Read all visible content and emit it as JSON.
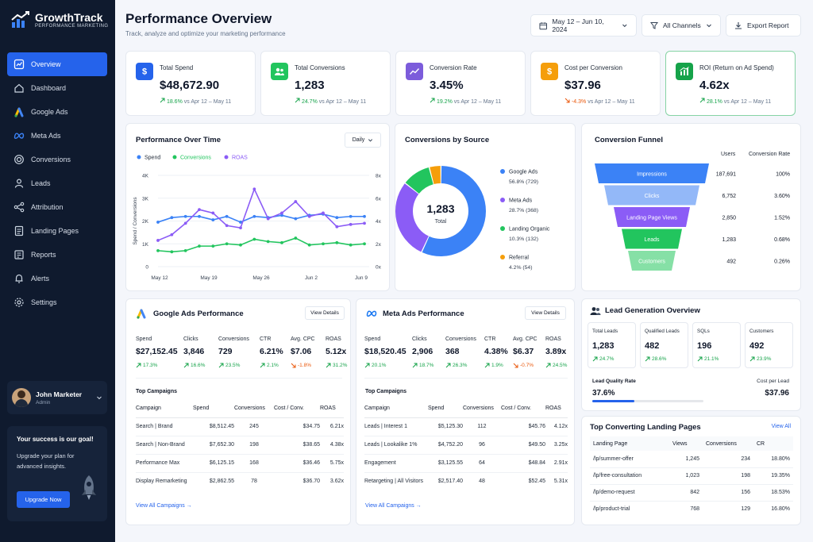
{
  "brand": {
    "name": "GrowthTrack",
    "tagline": "PERFORMANCE MARKETING"
  },
  "nav": [
    {
      "label": "Overview",
      "icon": "overview-icon",
      "active": true
    },
    {
      "label": "Dashboard",
      "icon": "dashboard-icon"
    },
    {
      "label": "Google Ads",
      "icon": "google-ads-icon"
    },
    {
      "label": "Meta Ads",
      "icon": "meta-icon"
    },
    {
      "label": "Conversions",
      "icon": "target-icon"
    },
    {
      "label": "Leads",
      "icon": "users-icon"
    },
    {
      "label": "Attribution",
      "icon": "share-icon"
    },
    {
      "label": "Landing Pages",
      "icon": "page-icon"
    },
    {
      "label": "Reports",
      "icon": "report-icon"
    },
    {
      "label": "Alerts",
      "icon": "bell-icon"
    },
    {
      "label": "Settings",
      "icon": "gear-icon"
    }
  ],
  "user": {
    "name": "John Marketer",
    "role": "Admin"
  },
  "promo": {
    "title": "Your success is our goal!",
    "text": "Upgrade your plan for advanced insights.",
    "button": "Upgrade Now"
  },
  "header": {
    "title": "Performance Overview",
    "subtitle": "Track, analyze and optimize your marketing performance",
    "date_range": "May 12 – Jun 10, 2024",
    "channels": "All Channels",
    "export": "Export Report"
  },
  "kpis": [
    {
      "label": "Total Spend",
      "value": "$48,672.90",
      "delta": "18.6%",
      "dir": "up",
      "compare": "vs Apr 12 – May 11",
      "color": "#2563eb",
      "icon": "dollar-icon"
    },
    {
      "label": "Total Conversions",
      "value": "1,283",
      "delta": "24.7%",
      "dir": "up",
      "compare": "vs Apr 12 – May 11",
      "color": "#22c55e",
      "icon": "users-icon"
    },
    {
      "label": "Conversion Rate",
      "value": "3.45%",
      "delta": "19.2%",
      "dir": "up",
      "compare": "vs Apr 12 – May 11",
      "color": "#7c5cdb",
      "icon": "trend-icon"
    },
    {
      "label": "Cost per Conversion",
      "value": "$37.96",
      "delta": "-4.3%",
      "dir": "down",
      "compare": "vs Apr 12 – May 11",
      "color": "#f59e0b",
      "icon": "dollar-icon"
    },
    {
      "label": "ROI (Return on Ad Spend)",
      "value": "4.62x",
      "delta": "28.1%",
      "dir": "up",
      "compare": "vs Apr 12 – May 11",
      "color": "#16a34a",
      "icon": "chart-icon"
    }
  ],
  "perf": {
    "title": "Performance Over Time",
    "granularity": "Daily",
    "legend": [
      "Spend",
      "Conversions",
      "ROAS"
    ],
    "colors": [
      "#3b82f6",
      "#22c55e",
      "#8b5cf6"
    ],
    "y_left_label": "Spend / Conversions",
    "left_ticks": [
      "4K",
      "3K",
      "2K",
      "1K",
      "0"
    ],
    "right_ticks": [
      "8x",
      "6x",
      "4x",
      "2x",
      "0x"
    ],
    "x_ticks": [
      "May 12",
      "May 19",
      "May 26",
      "Jun 2",
      "Jun 9"
    ]
  },
  "chart_data": {
    "type": "line",
    "title": "Performance Over Time",
    "ylabel": "Spend / Conversions",
    "ylim": [
      0,
      4000
    ],
    "y2lim": [
      0,
      8
    ],
    "x": [
      "May 12",
      "May 14",
      "May 16",
      "May 18",
      "May 20",
      "May 22",
      "May 24",
      "May 26",
      "May 28",
      "May 30",
      "Jun 1",
      "Jun 3",
      "Jun 5",
      "Jun 7",
      "Jun 9",
      "Jun 10"
    ],
    "series": [
      {
        "name": "Spend",
        "axis": "left",
        "values": [
          1950,
          2150,
          2200,
          2200,
          2050,
          2200,
          1950,
          2200,
          2150,
          2250,
          2100,
          2250,
          2300,
          2150,
          2200,
          2200
        ]
      },
      {
        "name": "Conversions",
        "axis": "left",
        "values": [
          700,
          650,
          700,
          900,
          900,
          1000,
          950,
          1200,
          1100,
          1050,
          1250,
          950,
          1000,
          1050,
          950,
          1000
        ]
      },
      {
        "name": "ROAS",
        "axis": "right",
        "values": [
          2.3,
          2.8,
          3.8,
          5.0,
          4.7,
          3.6,
          3.4,
          6.8,
          4.2,
          4.7,
          5.7,
          4.4,
          4.7,
          3.5,
          3.7,
          3.8
        ]
      }
    ]
  },
  "source": {
    "title": "Conversions by Source",
    "total": "1,283",
    "total_label": "Total",
    "items": [
      {
        "name": "Google Ads",
        "detail": "56.8% (729)",
        "pct": 56.8,
        "color": "#3b82f6"
      },
      {
        "name": "Meta Ads",
        "detail": "28.7% (368)",
        "pct": 28.7,
        "color": "#8b5cf6"
      },
      {
        "name": "Landing Organic",
        "detail": "10.3% (132)",
        "pct": 10.3,
        "color": "#22c55e"
      },
      {
        "name": "Referral",
        "detail": "4.2% (54)",
        "pct": 4.2,
        "color": "#f59e0b"
      }
    ]
  },
  "funnel": {
    "title": "Conversion Funnel",
    "col_users": "Users",
    "col_rate": "Conversion Rate",
    "stages": [
      {
        "name": "Impressions",
        "users": "187,691",
        "rate": "100%",
        "color": "#3b82f6"
      },
      {
        "name": "Clicks",
        "users": "6,752",
        "rate": "3.60%",
        "color": "#93b8f8"
      },
      {
        "name": "Landing Page Views",
        "users": "2,850",
        "rate": "1.52%",
        "color": "#8b5cf6"
      },
      {
        "name": "Leads",
        "users": "1,283",
        "rate": "0.68%",
        "color": "#22c55e"
      },
      {
        "name": "Customers",
        "users": "492",
        "rate": "0.26%",
        "color": "#86e0a6"
      }
    ]
  },
  "google": {
    "title": "Google Ads Performance",
    "view": "View Details",
    "metrics": [
      {
        "label": "Spend",
        "value": "$27,152.45",
        "delta": "17.3%",
        "dir": "up"
      },
      {
        "label": "Clicks",
        "value": "3,846",
        "delta": "16.6%",
        "dir": "up"
      },
      {
        "label": "Conversions",
        "value": "729",
        "delta": "23.5%",
        "dir": "up"
      },
      {
        "label": "CTR",
        "value": "6.21%",
        "delta": "2.1%",
        "dir": "up"
      },
      {
        "label": "Avg. CPC",
        "value": "$7.06",
        "delta": "-1.8%",
        "dir": "down"
      },
      {
        "label": "ROAS",
        "value": "5.12x",
        "delta": "31.2%",
        "dir": "up"
      }
    ],
    "top_title": "Top Campaigns",
    "cols": [
      "Campaign",
      "Spend",
      "Conversions",
      "Cost / Conv.",
      "ROAS"
    ],
    "rows": [
      [
        "Search | Brand",
        "$8,512.45",
        "245",
        "$34.75",
        "6.21x"
      ],
      [
        "Search | Non-Brand",
        "$7,652.30",
        "198",
        "$38.65",
        "4.38x"
      ],
      [
        "Performance Max",
        "$6,125.15",
        "168",
        "$36.46",
        "5.75x"
      ],
      [
        "Display Remarketing",
        "$2,862.55",
        "78",
        "$36.70",
        "3.62x"
      ]
    ],
    "link": "View All Campaigns →"
  },
  "meta": {
    "title": "Meta Ads Performance",
    "view": "View Details",
    "metrics": [
      {
        "label": "Spend",
        "value": "$18,520.45",
        "delta": "20.1%",
        "dir": "up"
      },
      {
        "label": "Clicks",
        "value": "2,906",
        "delta": "18.7%",
        "dir": "up"
      },
      {
        "label": "Conversions",
        "value": "368",
        "delta": "26.3%",
        "dir": "up"
      },
      {
        "label": "CTR",
        "value": "4.38%",
        "delta": "1.9%",
        "dir": "up"
      },
      {
        "label": "Avg. CPC",
        "value": "$6.37",
        "delta": "-0.7%",
        "dir": "down"
      },
      {
        "label": "ROAS",
        "value": "3.89x",
        "delta": "24.5%",
        "dir": "up"
      }
    ],
    "top_title": "Top Campaigns",
    "cols": [
      "Campaign",
      "Spend",
      "Conversions",
      "Cost / Conv.",
      "ROAS"
    ],
    "rows": [
      [
        "Leads | Interest 1",
        "$5,125.30",
        "112",
        "$45.76",
        "4.12x"
      ],
      [
        "Leads | Lookalike 1%",
        "$4,752.20",
        "96",
        "$49.50",
        "3.25x"
      ],
      [
        "Engagement",
        "$3,125.55",
        "64",
        "$48.84",
        "2.91x"
      ],
      [
        "Retargeting | All Visitors",
        "$2,517.40",
        "48",
        "$52.45",
        "5.31x"
      ]
    ],
    "link": "View All Campaigns →"
  },
  "leads": {
    "title": "Lead Generation Overview",
    "boxes": [
      {
        "label": "Total Leads",
        "value": "1,283",
        "delta": "24.7%"
      },
      {
        "label": "Qualified Leads",
        "value": "482",
        "delta": "28.6%"
      },
      {
        "label": "SQLs",
        "value": "196",
        "delta": "21.1%"
      },
      {
        "label": "Customers",
        "value": "492",
        "delta": "23.9%"
      }
    ],
    "quality_label": "Lead Quality Rate",
    "quality_value": "37.6%",
    "quality_pct": 37.6,
    "cpl_label": "Cost per Lead",
    "cpl_value": "$37.96"
  },
  "landing": {
    "title": "Top Converting Landing Pages",
    "view_all": "View All",
    "cols": [
      "Landing Page",
      "Views",
      "Conversions",
      "CR"
    ],
    "rows": [
      [
        "/lp/summer-offer",
        "1,245",
        "234",
        "18.80%"
      ],
      [
        "/lp/free-consultation",
        "1,023",
        "198",
        "19.35%"
      ],
      [
        "/lp/demo-request",
        "842",
        "156",
        "18.53%"
      ],
      [
        "/lp/product-trial",
        "768",
        "129",
        "16.80%"
      ]
    ]
  }
}
